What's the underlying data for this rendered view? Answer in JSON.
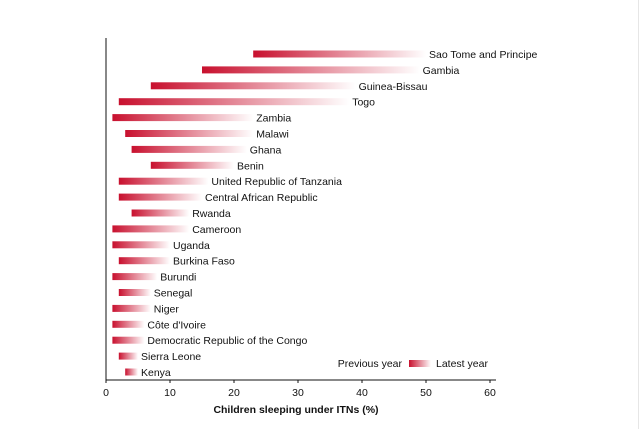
{
  "chart_data": {
    "type": "bar",
    "title": "",
    "xlabel": "Children sleeping under ITNs (%)",
    "ylabel": "",
    "xlim": [
      0,
      60
    ],
    "xticks": [
      0,
      10,
      20,
      30,
      40,
      50,
      60
    ],
    "grid": false,
    "legend": {
      "placement": "bottom-right",
      "start_label": "Previous year",
      "end_label": "Latest year"
    },
    "colors": {
      "start": "#c8102e",
      "end": "#ffffff"
    },
    "categories": [
      "Sao Tome and Principe",
      "Gambia",
      "Guinea-Bissau",
      "Togo",
      "Zambia",
      "Malawi",
      "Ghana",
      "Benin",
      "United Republic of Tanzania",
      "Central African Republic",
      "Rwanda",
      "Cameroon",
      "Uganda",
      "Burkina Faso",
      "Burundi",
      "Senegal",
      "Niger",
      "Côte d'Ivoire",
      "Democratic Republic of the Congo",
      "Sierra Leone",
      "Kenya"
    ],
    "series": [
      {
        "name": "Previous year",
        "values": [
          23,
          15,
          7,
          2,
          1,
          3,
          4,
          7,
          2,
          2,
          4,
          1,
          1,
          2,
          1,
          2,
          1,
          1,
          1,
          2,
          3
        ]
      },
      {
        "name": "Latest year",
        "values": [
          50,
          49,
          39,
          38,
          23,
          23,
          22,
          20,
          16,
          15,
          13,
          13,
          10,
          10,
          8,
          7,
          7,
          6,
          6,
          5,
          5
        ]
      }
    ]
  }
}
